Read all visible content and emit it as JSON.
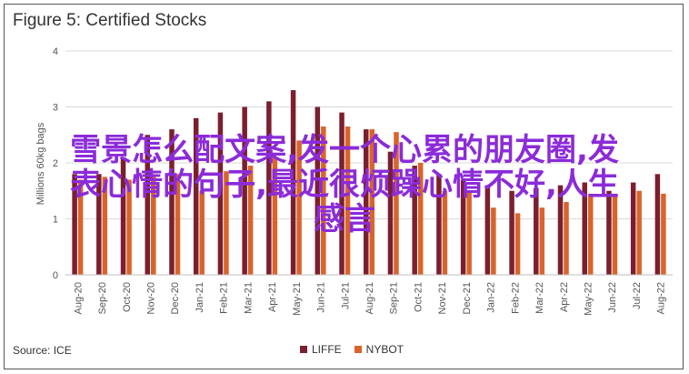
{
  "header": {
    "title": "Figure 5: Certified Stocks",
    "source": "Source: ICE"
  },
  "overlay_text": [
    "雪景怎么配文案,发一个心累的朋友圈,发",
    "表心情的句子,最近很烦躁心情不好,人生",
    "感言"
  ],
  "colors": {
    "lifee": "#7b1f2e",
    "nybot": "#d9642b",
    "grid": "#d9d9d9"
  },
  "chart_data": {
    "type": "bar",
    "ylabel": "Millions 60kg bags",
    "ylim": [
      0,
      4
    ],
    "yticks": [
      0,
      1,
      2,
      3,
      4
    ],
    "categories": [
      "Aug-20",
      "Sep-20",
      "Oct-20",
      "Nov-20",
      "Dec-20",
      "Jan-21",
      "Feb-21",
      "Mar-21",
      "Apr-21",
      "May-21",
      "Jun-21",
      "Jul-21",
      "Aug-21",
      "Sep-21",
      "Oct-21",
      "Nov-21",
      "Dec-21",
      "Jan-22",
      "Feb-22",
      "Mar-22",
      "Apr-22",
      "May-22",
      "Jun-22",
      "Jul-22",
      "Aug-22"
    ],
    "series": [
      {
        "name": "LIFFE",
        "values": [
          1.8,
          1.8,
          2.1,
          2.5,
          2.6,
          2.8,
          2.9,
          3.0,
          3.1,
          3.3,
          3.0,
          2.9,
          2.6,
          2.2,
          1.95,
          1.8,
          1.7,
          1.6,
          1.5,
          1.55,
          1.6,
          1.65,
          1.5,
          1.65,
          1.8
        ]
      },
      {
        "name": "NYBOT",
        "values": [
          1.7,
          1.75,
          1.7,
          1.8,
          1.8,
          1.5,
          1.85,
          1.95,
          2.1,
          2.4,
          2.65,
          2.65,
          2.6,
          2.55,
          2.0,
          1.5,
          1.5,
          1.2,
          1.1,
          1.2,
          1.3,
          1.45,
          1.45,
          1.5,
          1.45
        ]
      }
    ],
    "legend": [
      "LIFFE",
      "NYBOT"
    ],
    "legend_position": "bottom",
    "grid": true
  }
}
